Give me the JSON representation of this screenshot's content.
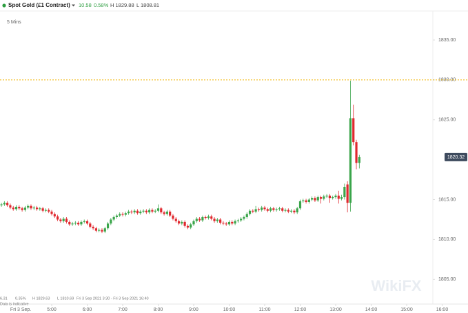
{
  "chart_data": {
    "type": "candlestick",
    "title": "Spot Gold (£1 Contract)",
    "header": {
      "change": "10.58",
      "change_pct": "0.58%",
      "high": "H 1829.88",
      "low": "L 1808.81"
    },
    "interval": "5 Mins",
    "footer": {
      "change": "6.31",
      "change_pct": "0.35%",
      "high": "H 1829.63",
      "low": "L 1810.69",
      "range": "Fri 3 Sep 2021 3:30 - Fri 3 Sep 2021 16:40",
      "note": "Data is indicative"
    },
    "watermark": "WikiFX",
    "up_color": "#3aa54a",
    "down_color": "#e0282e",
    "reference_line": 1830,
    "xlim": [
      212.6,
      944.3
    ],
    "ylim": [
      1802,
      1838.8
    ],
    "xticks": [
      {
        "value": 230,
        "label": "Fri 3 Sep."
      },
      {
        "value": 300,
        "label": "5:00"
      },
      {
        "value": 360,
        "label": "6:00"
      },
      {
        "value": 420,
        "label": "7:00"
      },
      {
        "value": 480,
        "label": "8:00"
      },
      {
        "value": 540,
        "label": "9:00"
      },
      {
        "value": 600,
        "label": "10:00"
      },
      {
        "value": 660,
        "label": "11:00"
      },
      {
        "value": 720,
        "label": "12:00"
      },
      {
        "value": 780,
        "label": "13:00"
      },
      {
        "value": 840,
        "label": "14:00"
      },
      {
        "value": 900,
        "label": "15:00"
      },
      {
        "value": 960,
        "label": "16:00"
      }
    ],
    "yticks": [
      {
        "value": 1805,
        "label": "1805.00"
      },
      {
        "value": 1810,
        "label": "1810.00"
      },
      {
        "value": 1815,
        "label": "1815.00"
      },
      {
        "value": 1825,
        "label": "1825.00"
      },
      {
        "value": 1830,
        "label": "1830.00"
      },
      {
        "value": 1835,
        "label": "1835.00"
      }
    ],
    "x": [
      215,
      220,
      225,
      230,
      235,
      240,
      245,
      250,
      255,
      260,
      265,
      270,
      275,
      280,
      285,
      290,
      295,
      300,
      305,
      310,
      315,
      320,
      325,
      330,
      335,
      340,
      345,
      350,
      355,
      360,
      365,
      370,
      375,
      380,
      385,
      390,
      395,
      400,
      405,
      410,
      415,
      420,
      425,
      430,
      435,
      440,
      445,
      450,
      455,
      460,
      465,
      470,
      475,
      480,
      485,
      490,
      495,
      500,
      505,
      510,
      515,
      520,
      525,
      530,
      535,
      540,
      545,
      550,
      555,
      560,
      565,
      570,
      575,
      580,
      585,
      590,
      595,
      600,
      605,
      610,
      615,
      620,
      625,
      630,
      635,
      640,
      645,
      650,
      655,
      660,
      665,
      670,
      675,
      680,
      685,
      690,
      695,
      700,
      705,
      710,
      715,
      720,
      725,
      730,
      735,
      740,
      745,
      750,
      755,
      760,
      765,
      770,
      775,
      780,
      785,
      790,
      795,
      800,
      805,
      810,
      815,
      820
    ],
    "open": [
      1814.3,
      1814.4,
      1814.6,
      1814.3,
      1814.0,
      1813.8,
      1814.1,
      1813.9,
      1813.7,
      1814.0,
      1814.2,
      1813.9,
      1814.0,
      1813.8,
      1813.9,
      1813.6,
      1813.7,
      1813.5,
      1813.2,
      1812.9,
      1812.5,
      1812.3,
      1812.6,
      1812.2,
      1811.9,
      1812.0,
      1812.1,
      1811.9,
      1812.2,
      1812.3,
      1812.0,
      1811.6,
      1811.4,
      1811.1,
      1811.2,
      1811.0,
      1811.4,
      1812.0,
      1812.5,
      1812.8,
      1813.0,
      1813.2,
      1813.1,
      1813.3,
      1813.5,
      1813.4,
      1813.6,
      1813.3,
      1813.5,
      1813.6,
      1813.4,
      1813.7,
      1813.5,
      1813.6,
      1813.9,
      1813.4,
      1813.2,
      1813.5,
      1813.0,
      1812.6,
      1812.3,
      1812.0,
      1812.2,
      1811.7,
      1811.5,
      1811.9,
      1812.3,
      1812.6,
      1812.4,
      1812.8,
      1812.7,
      1812.9,
      1812.6,
      1812.3,
      1812.5,
      1812.1,
      1812.0,
      1811.9,
      1812.2,
      1812.0,
      1812.3,
      1812.4,
      1812.6,
      1812.8,
      1813.2,
      1813.6,
      1813.5,
      1813.8,
      1813.7,
      1814.0,
      1813.8,
      1813.6,
      1813.9,
      1813.7,
      1813.8,
      1813.9,
      1813.6,
      1813.7,
      1813.5,
      1813.6,
      1813.4,
      1813.9,
      1814.8,
      1814.9,
      1814.7,
      1815.0,
      1815.2,
      1814.9,
      1815.3,
      1815.1,
      1815.4,
      1815.5,
      1815.2,
      1815.3,
      1815.5,
      1815.1,
      1815.3,
      1816.9,
      1814.6,
      1825.2,
      1822.2,
      1819.6
    ],
    "high": [
      1814.6,
      1814.8,
      1814.8,
      1814.5,
      1814.2,
      1814.3,
      1814.3,
      1814.1,
      1814.2,
      1814.4,
      1814.4,
      1814.2,
      1814.2,
      1814.1,
      1814.1,
      1813.9,
      1813.9,
      1813.7,
      1813.4,
      1813.1,
      1812.7,
      1812.8,
      1812.8,
      1812.4,
      1812.2,
      1812.3,
      1812.3,
      1812.4,
      1812.5,
      1812.5,
      1812.2,
      1811.8,
      1811.6,
      1811.4,
      1811.4,
      1811.6,
      1812.2,
      1812.7,
      1813.0,
      1813.2,
      1813.4,
      1813.4,
      1813.5,
      1813.7,
      1813.7,
      1813.8,
      1813.8,
      1813.7,
      1813.8,
      1813.8,
      1813.9,
      1813.9,
      1813.8,
      1814.4,
      1814.1,
      1813.6,
      1813.7,
      1813.7,
      1813.2,
      1812.8,
      1812.5,
      1812.4,
      1812.4,
      1811.9,
      1812.1,
      1812.5,
      1812.8,
      1812.8,
      1813.0,
      1813.0,
      1813.1,
      1813.1,
      1812.8,
      1812.7,
      1812.7,
      1812.3,
      1812.2,
      1812.4,
      1812.4,
      1812.5,
      1812.6,
      1812.8,
      1813.0,
      1813.4,
      1813.8,
      1813.8,
      1814.2,
      1814.0,
      1814.2,
      1814.2,
      1814.0,
      1814.1,
      1814.1,
      1814.0,
      1814.1,
      1814.1,
      1813.9,
      1813.9,
      1813.8,
      1813.8,
      1814.1,
      1815.0,
      1815.1,
      1815.1,
      1815.2,
      1815.4,
      1815.4,
      1815.5,
      1815.5,
      1815.6,
      1815.7,
      1815.7,
      1815.5,
      1815.7,
      1816.1,
      1815.6,
      1817.0,
      1817.3,
      1829.9,
      1826.9,
      1822.5,
      1820.6
    ],
    "low": [
      1814.1,
      1814.2,
      1814.1,
      1813.8,
      1813.6,
      1813.6,
      1813.7,
      1813.5,
      1813.5,
      1813.8,
      1813.7,
      1813.7,
      1813.6,
      1813.6,
      1813.4,
      1813.4,
      1813.3,
      1813.0,
      1812.7,
      1812.3,
      1812.1,
      1812.1,
      1812.0,
      1811.7,
      1811.7,
      1811.8,
      1811.7,
      1811.7,
      1812.0,
      1811.8,
      1811.4,
      1811.2,
      1810.9,
      1810.9,
      1810.8,
      1810.8,
      1811.2,
      1811.8,
      1812.3,
      1812.6,
      1812.8,
      1812.9,
      1812.9,
      1813.1,
      1813.2,
      1813.2,
      1813.1,
      1813.1,
      1813.3,
      1813.2,
      1813.2,
      1813.3,
      1813.3,
      1813.4,
      1813.2,
      1813.0,
      1813.0,
      1812.8,
      1812.4,
      1812.1,
      1811.8,
      1811.8,
      1811.5,
      1811.3,
      1811.3,
      1811.7,
      1812.1,
      1812.2,
      1812.2,
      1812.5,
      1812.5,
      1812.4,
      1812.1,
      1812.1,
      1811.9,
      1811.8,
      1811.7,
      1811.7,
      1811.8,
      1811.8,
      1812.1,
      1812.2,
      1812.4,
      1812.6,
      1813.0,
      1813.3,
      1813.3,
      1813.5,
      1813.5,
      1813.6,
      1813.4,
      1813.4,
      1813.5,
      1813.5,
      1813.6,
      1813.4,
      1813.4,
      1813.3,
      1813.3,
      1813.2,
      1813.2,
      1813.7,
      1814.6,
      1814.5,
      1814.5,
      1814.8,
      1814.7,
      1814.7,
      1814.5,
      1814.9,
      1815.2,
      1814.6,
      1815.0,
      1815.1,
      1814.5,
      1814.9,
      1815.0,
      1813.4,
      1813.5,
      1821.8,
      1818.8,
      1818.9
    ],
    "close": [
      1814.4,
      1814.6,
      1814.3,
      1814.0,
      1813.8,
      1814.1,
      1813.9,
      1813.7,
      1814.0,
      1814.2,
      1813.9,
      1814.0,
      1813.8,
      1813.9,
      1813.6,
      1813.7,
      1813.5,
      1813.2,
      1812.9,
      1812.5,
      1812.3,
      1812.6,
      1812.2,
      1811.9,
      1812.0,
      1812.1,
      1811.9,
      1812.2,
      1812.3,
      1812.0,
      1811.6,
      1811.4,
      1811.1,
      1811.2,
      1811.0,
      1811.4,
      1812.0,
      1812.5,
      1812.8,
      1813.0,
      1813.2,
      1813.1,
      1813.3,
      1813.5,
      1813.4,
      1813.6,
      1813.3,
      1813.5,
      1813.6,
      1813.4,
      1813.7,
      1813.5,
      1813.6,
      1813.9,
      1813.4,
      1813.2,
      1813.5,
      1813.0,
      1812.6,
      1812.3,
      1812.0,
      1812.2,
      1811.7,
      1811.5,
      1811.9,
      1812.3,
      1812.6,
      1812.4,
      1812.8,
      1812.7,
      1812.9,
      1812.6,
      1812.3,
      1812.5,
      1812.1,
      1812.0,
      1811.9,
      1812.2,
      1812.0,
      1812.3,
      1812.4,
      1812.6,
      1812.8,
      1813.2,
      1813.6,
      1813.5,
      1813.8,
      1813.7,
      1814.0,
      1813.8,
      1813.6,
      1813.9,
      1813.7,
      1813.8,
      1813.9,
      1813.6,
      1813.7,
      1813.5,
      1813.6,
      1813.4,
      1813.9,
      1814.8,
      1814.9,
      1814.7,
      1815.0,
      1815.2,
      1814.9,
      1815.3,
      1815.1,
      1815.4,
      1815.5,
      1815.2,
      1815.3,
      1815.5,
      1815.1,
      1815.3,
      1816.6,
      1814.6,
      1825.2,
      1822.2,
      1819.6,
      1820.32
    ]
  }
}
